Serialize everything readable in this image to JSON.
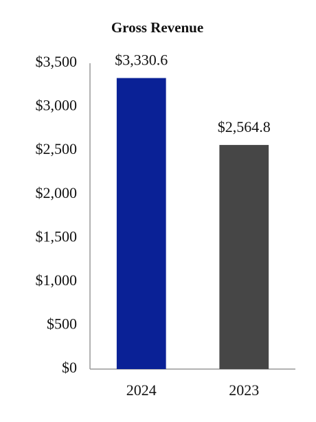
{
  "chart_data": {
    "type": "bar",
    "title": "Gross Revenue",
    "categories": [
      "2024",
      "2023"
    ],
    "values": [
      3330.6,
      2564.8
    ],
    "value_labels": [
      "$3,330.6",
      "$2,564.8"
    ],
    "colors": [
      "#0a2196",
      "#464646"
    ],
    "ylim": [
      0,
      3500
    ],
    "yticks": [
      {
        "value": 0,
        "label": "$0"
      },
      {
        "value": 500,
        "label": "$500"
      },
      {
        "value": 1000,
        "label": "$1,000"
      },
      {
        "value": 1500,
        "label": "$1,500"
      },
      {
        "value": 2000,
        "label": "$2,000"
      },
      {
        "value": 2500,
        "label": "$2,500"
      },
      {
        "value": 3000,
        "label": "$3,000"
      },
      {
        "value": 3500,
        "label": "$3,500"
      }
    ],
    "grid": false
  }
}
